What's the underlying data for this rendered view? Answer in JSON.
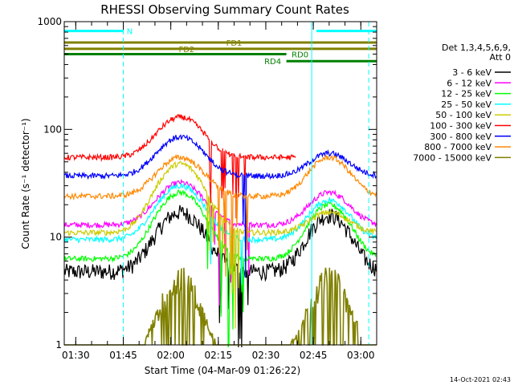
{
  "chart_data": {
    "type": "line",
    "title": "RHESSI Observing Summary Count Rates",
    "xlabel": "Start Time (04-Mar-09 01:26:22)",
    "ylabel": "Count Rate (s⁻¹ detector⁻¹)",
    "yscale": "log",
    "ylim": [
      1,
      1000
    ],
    "y_ticks": [
      {
        "value": 1,
        "label": "1"
      },
      {
        "value": 10,
        "label": "10"
      },
      {
        "value": 100,
        "label": "100"
      },
      {
        "value": 1000,
        "label": "1000"
      }
    ],
    "x_ticks": [
      "01:30",
      "01:45",
      "02:00",
      "02:15",
      "02:30",
      "02:45",
      "03:00"
    ],
    "xlim": [
      "01:26:22",
      "03:05:00"
    ],
    "legend_header": [
      "Det 1,3,4,5,6,9,",
      "Att 0"
    ],
    "legend_position": "top-right",
    "footer": "14-Oct-2021 02:43",
    "series": [
      {
        "name": "3 - 6 keV",
        "color": "#000000",
        "base": 4.8,
        "peak1": 17,
        "peak2": 16
      },
      {
        "name": "6 - 12 keV",
        "color": "#ff00ff",
        "base": 13,
        "peak1": 32,
        "peak2": 26
      },
      {
        "name": "12 - 25 keV",
        "color": "#00ff00",
        "base": 6.3,
        "peak1": 26,
        "peak2": 20
      },
      {
        "name": "25 - 50 keV",
        "color": "#00ffff",
        "base": 9.5,
        "peak1": 30,
        "peak2": 22
      },
      {
        "name": "50 - 100 keV",
        "color": "#cccc00",
        "base": 11,
        "peak1": 48,
        "peak2": 17
      },
      {
        "name": "100 - 300 keV",
        "color": "#ff0000",
        "base": 55,
        "peak1": 130,
        "peak2": null
      },
      {
        "name": "300 - 800 keV",
        "color": "#0000ff",
        "base": 37,
        "peak1": 85,
        "peak2": 60
      },
      {
        "name": "800 - 7000 keV",
        "color": "#ff8800",
        "base": 24,
        "peak1": 55,
        "peak2": 55
      },
      {
        "name": "7000 - 15000 keV",
        "color": "#808000",
        "base": 1,
        "peak1": 4.5,
        "peak2": 4.5
      }
    ],
    "flags": [
      {
        "label": "N",
        "color": "#00ffff",
        "y": 820,
        "segments": [
          [
            "01:26:22",
            "01:45:00"
          ],
          [
            "02:46:00",
            "03:05:00"
          ]
        ]
      },
      {
        "label": "FD1",
        "color": "#808000",
        "y": 640,
        "segments": [
          [
            "01:26:22",
            "03:05:00"
          ]
        ]
      },
      {
        "label": "FD2",
        "color": "#808000",
        "y": 560,
        "segments": [
          [
            "01:26:22",
            "03:05:00"
          ]
        ]
      },
      {
        "label": "RD0",
        "color": "#008000",
        "y": 500,
        "segments": [
          [
            "01:26:22",
            "02:36:30"
          ]
        ]
      },
      {
        "label": "RD4",
        "color": "#008000",
        "y": 430,
        "segments": [
          [
            "02:36:30",
            "03:05:00"
          ]
        ]
      }
    ],
    "vertical_lines": [
      {
        "time": "01:45:00",
        "color": "#00ffff",
        "style": "dashed"
      },
      {
        "time": "02:44:30",
        "color": "#00ffff",
        "style": "solid"
      },
      {
        "time": "03:02:30",
        "color": "#00ffff",
        "style": "dashed"
      }
    ]
  }
}
